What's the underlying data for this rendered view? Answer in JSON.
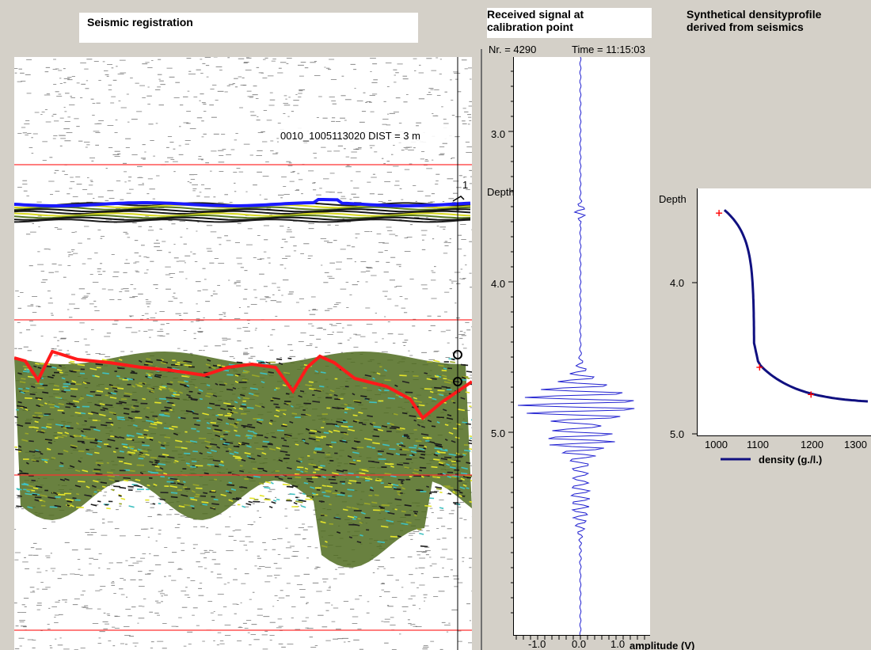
{
  "headers": {
    "seismic_title": "Seismic registration",
    "signal_title_line1": "Received signal at",
    "signal_title_line2": "calibration point",
    "density_title_line1": "Synthetical densityprofile",
    "density_title_line2": "derived from seismics"
  },
  "seismic": {
    "trace_label": "0010_1005113020   DIST = 3 m",
    "marker_label": "1"
  },
  "signal": {
    "nr_label": "Nr. = 4290",
    "time_label": "Time = 11:15:03",
    "depth_label": "Depth",
    "y_ticks": [
      "3.0",
      "4.0",
      "5.0"
    ],
    "x_ticks": [
      "-1.0",
      "0.0",
      "1.0"
    ],
    "x_axis_label": "amplitude (V)"
  },
  "density": {
    "depth_label": "Depth",
    "y_ticks": [
      "4.0",
      "5.0"
    ],
    "x_ticks": [
      "1000",
      "1100",
      "1200",
      "1300"
    ],
    "legend_label": "density (g./l.)",
    "calibration_points": [
      {
        "density": 1025,
        "depth": 3.54
      },
      {
        "density": 1100,
        "depth": 4.56
      },
      {
        "density": 1195,
        "depth": 4.74
      }
    ]
  },
  "colors": {
    "background": "#d4d0c8",
    "reflector_top": "#1a1aff",
    "reflector_bottom": "#ff1a1a",
    "signal_trace": "#1f1fd0",
    "density_curve": "#101080",
    "calibration_marker": "#ff0000"
  }
}
